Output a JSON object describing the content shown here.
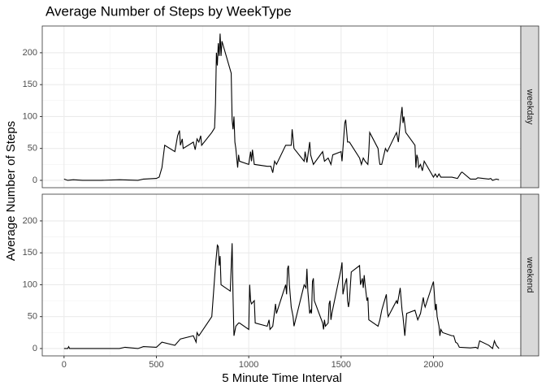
{
  "chart_data": {
    "type": "line",
    "title": "Average Number of Steps by WeekType",
    "x_label": "5 Minute Time Interval",
    "y_label": "Average Number of Steps",
    "xlim": [
      -118,
      2473
    ],
    "xticks": [
      0,
      500,
      1000,
      1500,
      2000
    ],
    "ylim": [
      -11.5,
      241.9
    ],
    "yticks": [
      0,
      50,
      100,
      150,
      200
    ],
    "grid": true,
    "color": "#000000",
    "facets": [
      {
        "label": "weekday",
        "x": [
          0,
          20,
          50,
          100,
          200,
          300,
          400,
          430,
          500,
          515,
          530,
          545,
          600,
          615,
          625,
          630,
          640,
          645,
          700,
          710,
          720,
          730,
          740,
          745,
          800,
          815,
          820,
          825,
          830,
          835,
          840,
          845,
          850,
          855,
          905,
          910,
          915,
          920,
          925,
          930,
          940,
          945,
          950,
          1000,
          1010,
          1015,
          1020,
          1030,
          1100,
          1120,
          1130,
          1140,
          1150,
          1200,
          1230,
          1235,
          1245,
          1300,
          1305,
          1315,
          1330,
          1335,
          1350,
          1400,
          1410,
          1430,
          1445,
          1455,
          1500,
          1505,
          1520,
          1525,
          1535,
          1545,
          1600,
          1610,
          1620,
          1630,
          1645,
          1650,
          1655,
          1700,
          1705,
          1710,
          1720,
          1740,
          1750,
          1800,
          1810,
          1820,
          1830,
          1835,
          1840,
          1850,
          1900,
          1905,
          1910,
          1915,
          1920,
          1930,
          1940,
          1950,
          2000,
          2010,
          2020,
          2030,
          2040,
          2100,
          2130,
          2150,
          2155,
          2200,
          2230,
          2240,
          2300,
          2310,
          2320,
          2340,
          2355
        ],
        "values": [
          2,
          0,
          1,
          0,
          0,
          1,
          0,
          2,
          3,
          5,
          20,
          55,
          45,
          70,
          78,
          55,
          65,
          50,
          60,
          48,
          65,
          60,
          70,
          55,
          75,
          82,
          120,
          200,
          180,
          215,
          195,
          230,
          195,
          218,
          168,
          95,
          80,
          100,
          60,
          50,
          20,
          40,
          30,
          25,
          45,
          30,
          48,
          25,
          22,
          22,
          12,
          30,
          25,
          55,
          55,
          80,
          50,
          30,
          45,
          28,
          60,
          40,
          25,
          45,
          30,
          35,
          25,
          40,
          45,
          30,
          90,
          95,
          60,
          60,
          35,
          25,
          35,
          30,
          25,
          45,
          75,
          50,
          35,
          25,
          25,
          50,
          45,
          75,
          60,
          90,
          115,
          90,
          100,
          75,
          55,
          20,
          40,
          35,
          20,
          25,
          15,
          30,
          5,
          10,
          5,
          10,
          5,
          5,
          3,
          12,
          13,
          2,
          2,
          4,
          2,
          3,
          0,
          2,
          1
        ]
      },
      {
        "label": "weekend",
        "x": [
          0,
          20,
          25,
          30,
          300,
          330,
          400,
          430,
          500,
          530,
          600,
          630,
          700,
          715,
          720,
          730,
          800,
          815,
          820,
          830,
          835,
          840,
          845,
          850,
          900,
          910,
          915,
          920,
          930,
          945,
          950,
          1000,
          1005,
          1010,
          1015,
          1030,
          1035,
          1100,
          1110,
          1115,
          1130,
          1145,
          1150,
          1200,
          1205,
          1210,
          1215,
          1220,
          1230,
          1240,
          1245,
          1300,
          1310,
          1315,
          1320,
          1330,
          1335,
          1340,
          1345,
          1350,
          1355,
          1400,
          1405,
          1410,
          1415,
          1430,
          1435,
          1440,
          1445,
          1450,
          1500,
          1505,
          1510,
          1520,
          1530,
          1535,
          1540,
          1545,
          1555,
          1600,
          1605,
          1615,
          1620,
          1625,
          1630,
          1640,
          1645,
          1650,
          1700,
          1710,
          1720,
          1735,
          1745,
          1750,
          1755,
          1800,
          1805,
          1820,
          1830,
          1835,
          1840,
          1845,
          1855,
          1900,
          1915,
          1930,
          1945,
          1950,
          1955,
          2000,
          2005,
          2010,
          2015,
          2020,
          2030,
          2035,
          2040,
          2050,
          2100,
          2110,
          2120,
          2130,
          2140,
          2200,
          2230,
          2240,
          2250,
          2300,
          2320,
          2330,
          2340,
          2355
        ],
        "values": [
          0,
          0,
          3,
          0,
          0,
          2,
          0,
          3,
          2,
          10,
          5,
          15,
          20,
          10,
          25,
          20,
          50,
          110,
          130,
          162,
          160,
          130,
          145,
          100,
          90,
          165,
          80,
          20,
          35,
          40,
          40,
          30,
          100,
          75,
          70,
          75,
          40,
          35,
          45,
          30,
          35,
          70,
          55,
          100,
          85,
          125,
          130,
          100,
          65,
          50,
          35,
          100,
          95,
          125,
          90,
          55,
          60,
          55,
          105,
          110,
          75,
          40,
          30,
          45,
          35,
          40,
          70,
          75,
          45,
          55,
          125,
          135,
          85,
          100,
          110,
          75,
          65,
          75,
          120,
          130,
          100,
          110,
          95,
          115,
          100,
          75,
          80,
          45,
          35,
          45,
          60,
          75,
          85,
          60,
          50,
          75,
          70,
          95,
          60,
          50,
          35,
          20,
          55,
          60,
          45,
          55,
          80,
          70,
          65,
          105,
          85,
          60,
          70,
          50,
          35,
          20,
          30,
          25,
          20,
          20,
          10,
          8,
          2,
          1,
          2,
          0,
          12,
          5,
          0,
          12,
          5,
          0
        ]
      }
    ]
  }
}
